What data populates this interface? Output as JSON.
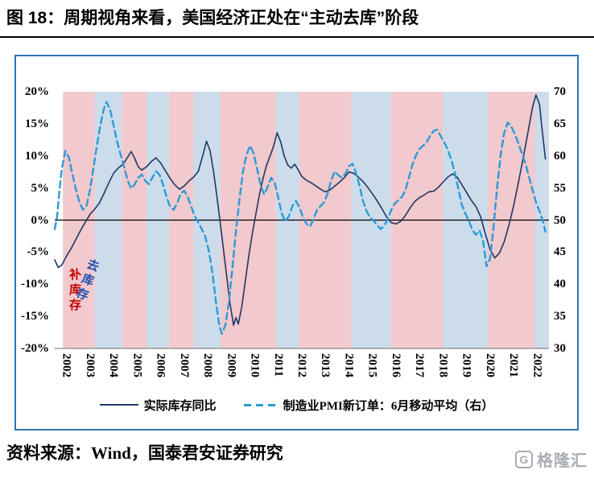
{
  "header": {
    "title": "图 18：周期视角来看，美国经济正处在“主动去库”阶段"
  },
  "source": {
    "text": "资料来源：Wind，国泰君安证券研究"
  },
  "watermark": {
    "logo_letter": "G",
    "text": "格隆汇"
  },
  "annotations": [
    {
      "id": "restock-label",
      "text": "补库存",
      "color": "#c00000"
    },
    {
      "id": "destock-label",
      "text": "去库存",
      "color": "#1f4fae"
    }
  ],
  "chart_data": {
    "type": "line",
    "x_range": [
      2002,
      2023
    ],
    "x_ticks": [
      "2002",
      "2003",
      "2004",
      "2005",
      "2006",
      "2007",
      "2008",
      "2009",
      "2010",
      "2011",
      "2012",
      "2013",
      "2014",
      "2015",
      "2016",
      "2017",
      "2018",
      "2019",
      "2020",
      "2021",
      "2022"
    ],
    "left_axis": {
      "min": -20,
      "max": 20,
      "ticks": [
        "20%",
        "15%",
        "10%",
        "5%",
        "0%",
        "-5%",
        "-10%",
        "-15%",
        "-20%"
      ],
      "tick_values": [
        20,
        15,
        10,
        5,
        0,
        -5,
        -10,
        -15,
        -20
      ]
    },
    "right_axis": {
      "min": 30,
      "max": 70,
      "ticks": [
        "70",
        "65",
        "60",
        "55",
        "50",
        "45",
        "40",
        "35",
        "30"
      ],
      "tick_values": [
        70,
        65,
        60,
        55,
        50,
        45,
        40,
        35,
        30
      ]
    },
    "band_colors": {
      "补库存": "#f2c9cd",
      "去库存": "#cddcea"
    },
    "bands": [
      {
        "from": 2002.35,
        "to": 2003.7,
        "phase": "补库存"
      },
      {
        "from": 2003.7,
        "to": 2004.85,
        "phase": "去库存"
      },
      {
        "from": 2004.85,
        "to": 2005.9,
        "phase": "补库存"
      },
      {
        "from": 2005.9,
        "to": 2006.85,
        "phase": "去库存"
      },
      {
        "from": 2006.85,
        "to": 2007.9,
        "phase": "补库存"
      },
      {
        "from": 2007.9,
        "to": 2009.05,
        "phase": "去库存"
      },
      {
        "from": 2009.05,
        "to": 2011.4,
        "phase": "补库存"
      },
      {
        "from": 2011.4,
        "to": 2012.4,
        "phase": "去库存"
      },
      {
        "from": 2012.4,
        "to": 2014.6,
        "phase": "补库存"
      },
      {
        "from": 2014.6,
        "to": 2016.3,
        "phase": "去库存"
      },
      {
        "from": 2016.3,
        "to": 2018.5,
        "phase": "补库存"
      },
      {
        "from": 2018.5,
        "to": 2020.4,
        "phase": "去库存"
      },
      {
        "from": 2020.4,
        "to": 2022.4,
        "phase": "补库存"
      },
      {
        "from": 2022.4,
        "to": 2023.0,
        "phase": "去库存"
      }
    ],
    "series": [
      {
        "name": "实际库存同比",
        "axis": "left",
        "style": "solid",
        "color": "#1f3864",
        "points": [
          [
            2002.0,
            -6.2
          ],
          [
            2002.15,
            -7.4
          ],
          [
            2002.3,
            -7.0
          ],
          [
            2002.5,
            -5.6
          ],
          [
            2002.7,
            -4.4
          ],
          [
            2002.9,
            -3.0
          ],
          [
            2003.1,
            -1.6
          ],
          [
            2003.3,
            -0.3
          ],
          [
            2003.5,
            0.9
          ],
          [
            2003.7,
            1.7
          ],
          [
            2003.9,
            2.7
          ],
          [
            2004.1,
            4.2
          ],
          [
            2004.3,
            5.8
          ],
          [
            2004.5,
            7.3
          ],
          [
            2004.7,
            8.1
          ],
          [
            2004.9,
            8.7
          ],
          [
            2005.1,
            9.8
          ],
          [
            2005.25,
            10.7
          ],
          [
            2005.4,
            9.6
          ],
          [
            2005.55,
            8.3
          ],
          [
            2005.7,
            7.8
          ],
          [
            2005.9,
            8.3
          ],
          [
            2006.1,
            9.1
          ],
          [
            2006.3,
            9.7
          ],
          [
            2006.5,
            8.9
          ],
          [
            2006.7,
            7.7
          ],
          [
            2006.9,
            6.5
          ],
          [
            2007.1,
            5.5
          ],
          [
            2007.3,
            4.8
          ],
          [
            2007.5,
            5.3
          ],
          [
            2007.7,
            6.1
          ],
          [
            2007.9,
            6.7
          ],
          [
            2008.1,
            7.6
          ],
          [
            2008.3,
            10.2
          ],
          [
            2008.45,
            12.3
          ],
          [
            2008.6,
            10.8
          ],
          [
            2008.75,
            7.5
          ],
          [
            2008.9,
            3.5
          ],
          [
            2009.0,
            0.5
          ],
          [
            2009.15,
            -4.0
          ],
          [
            2009.3,
            -8.5
          ],
          [
            2009.45,
            -13.0
          ],
          [
            2009.6,
            -16.4
          ],
          [
            2009.7,
            -15.2
          ],
          [
            2009.8,
            -16.2
          ],
          [
            2009.95,
            -13.5
          ],
          [
            2010.1,
            -9.5
          ],
          [
            2010.25,
            -5.5
          ],
          [
            2010.4,
            -2.0
          ],
          [
            2010.55,
            1.0
          ],
          [
            2010.7,
            4.0
          ],
          [
            2010.85,
            6.5
          ],
          [
            2011.0,
            8.5
          ],
          [
            2011.15,
            10.0
          ],
          [
            2011.3,
            11.5
          ],
          [
            2011.45,
            13.6
          ],
          [
            2011.6,
            12.2
          ],
          [
            2011.75,
            10.0
          ],
          [
            2011.9,
            8.6
          ],
          [
            2012.05,
            8.1
          ],
          [
            2012.2,
            8.7
          ],
          [
            2012.35,
            7.8
          ],
          [
            2012.5,
            6.8
          ],
          [
            2012.7,
            6.2
          ],
          [
            2012.9,
            5.8
          ],
          [
            2013.1,
            5.3
          ],
          [
            2013.3,
            4.8
          ],
          [
            2013.5,
            4.4
          ],
          [
            2013.7,
            4.7
          ],
          [
            2013.9,
            5.3
          ],
          [
            2014.1,
            5.9
          ],
          [
            2014.3,
            6.6
          ],
          [
            2014.5,
            7.5
          ],
          [
            2014.7,
            7.3
          ],
          [
            2014.9,
            6.7
          ],
          [
            2015.1,
            6.0
          ],
          [
            2015.3,
            5.1
          ],
          [
            2015.5,
            4.1
          ],
          [
            2015.7,
            3.0
          ],
          [
            2015.9,
            1.8
          ],
          [
            2016.1,
            0.5
          ],
          [
            2016.3,
            -0.4
          ],
          [
            2016.5,
            -0.6
          ],
          [
            2016.7,
            -0.2
          ],
          [
            2016.9,
            0.7
          ],
          [
            2017.1,
            1.9
          ],
          [
            2017.3,
            2.9
          ],
          [
            2017.5,
            3.5
          ],
          [
            2017.7,
            3.9
          ],
          [
            2017.9,
            4.4
          ],
          [
            2018.1,
            4.5
          ],
          [
            2018.3,
            5.1
          ],
          [
            2018.5,
            5.9
          ],
          [
            2018.7,
            6.7
          ],
          [
            2018.9,
            7.2
          ],
          [
            2019.1,
            6.7
          ],
          [
            2019.3,
            5.5
          ],
          [
            2019.5,
            4.3
          ],
          [
            2019.7,
            3.1
          ],
          [
            2019.9,
            2.1
          ],
          [
            2020.1,
            0.5
          ],
          [
            2020.3,
            -2.2
          ],
          [
            2020.5,
            -4.6
          ],
          [
            2020.7,
            -5.9
          ],
          [
            2020.9,
            -5.1
          ],
          [
            2021.1,
            -3.4
          ],
          [
            2021.3,
            -0.8
          ],
          [
            2021.5,
            2.2
          ],
          [
            2021.7,
            5.8
          ],
          [
            2021.9,
            9.5
          ],
          [
            2022.1,
            13.5
          ],
          [
            2022.3,
            17.5
          ],
          [
            2022.45,
            19.5
          ],
          [
            2022.6,
            18.0
          ],
          [
            2022.7,
            14.5
          ],
          [
            2022.85,
            9.5
          ]
        ]
      },
      {
        "name": "制造业PMI新订单：6月移动平均（右）",
        "axis": "right",
        "style": "dashed",
        "color": "#2b9bd7",
        "points": [
          [
            2002.0,
            48.6
          ],
          [
            2002.1,
            50.5
          ],
          [
            2002.2,
            54.5
          ],
          [
            2002.3,
            58.0
          ],
          [
            2002.45,
            60.8
          ],
          [
            2002.6,
            59.8
          ],
          [
            2002.75,
            57.2
          ],
          [
            2002.9,
            54.8
          ],
          [
            2003.05,
            52.8
          ],
          [
            2003.2,
            51.6
          ],
          [
            2003.35,
            52.2
          ],
          [
            2003.5,
            54.8
          ],
          [
            2003.65,
            58.2
          ],
          [
            2003.8,
            61.8
          ],
          [
            2003.95,
            65.0
          ],
          [
            2004.1,
            67.5
          ],
          [
            2004.2,
            68.4
          ],
          [
            2004.35,
            67.2
          ],
          [
            2004.5,
            64.8
          ],
          [
            2004.65,
            62.2
          ],
          [
            2004.8,
            60.2
          ],
          [
            2004.95,
            58.2
          ],
          [
            2005.1,
            56.2
          ],
          [
            2005.25,
            54.9
          ],
          [
            2005.4,
            55.6
          ],
          [
            2005.55,
            56.6
          ],
          [
            2005.7,
            57.1
          ],
          [
            2005.85,
            56.1
          ],
          [
            2006.0,
            55.6
          ],
          [
            2006.15,
            56.6
          ],
          [
            2006.3,
            57.6
          ],
          [
            2006.45,
            57.1
          ],
          [
            2006.6,
            55.6
          ],
          [
            2006.75,
            53.6
          ],
          [
            2006.9,
            52.1
          ],
          [
            2007.05,
            51.6
          ],
          [
            2007.2,
            52.6
          ],
          [
            2007.35,
            54.1
          ],
          [
            2007.5,
            54.6
          ],
          [
            2007.65,
            53.6
          ],
          [
            2007.8,
            52.1
          ],
          [
            2007.95,
            50.6
          ],
          [
            2008.1,
            49.6
          ],
          [
            2008.25,
            48.6
          ],
          [
            2008.4,
            47.4
          ],
          [
            2008.55,
            45.2
          ],
          [
            2008.7,
            41.8
          ],
          [
            2008.85,
            37.2
          ],
          [
            2009.0,
            33.4
          ],
          [
            2009.1,
            32.3
          ],
          [
            2009.25,
            33.6
          ],
          [
            2009.4,
            37.2
          ],
          [
            2009.55,
            42.5
          ],
          [
            2009.7,
            48.2
          ],
          [
            2009.85,
            53.2
          ],
          [
            2010.0,
            57.6
          ],
          [
            2010.15,
            60.2
          ],
          [
            2010.3,
            61.6
          ],
          [
            2010.45,
            60.4
          ],
          [
            2010.6,
            58.0
          ],
          [
            2010.75,
            55.4
          ],
          [
            2010.9,
            54.0
          ],
          [
            2011.05,
            55.2
          ],
          [
            2011.2,
            56.6
          ],
          [
            2011.35,
            55.8
          ],
          [
            2011.5,
            53.4
          ],
          [
            2011.65,
            51.0
          ],
          [
            2011.8,
            49.8
          ],
          [
            2011.95,
            50.6
          ],
          [
            2012.1,
            52.2
          ],
          [
            2012.25,
            53.0
          ],
          [
            2012.4,
            52.0
          ],
          [
            2012.55,
            50.4
          ],
          [
            2012.7,
            49.4
          ],
          [
            2012.85,
            49.0
          ],
          [
            2013.0,
            50.2
          ],
          [
            2013.15,
            51.6
          ],
          [
            2013.3,
            52.2
          ],
          [
            2013.45,
            52.8
          ],
          [
            2013.6,
            54.2
          ],
          [
            2013.75,
            56.2
          ],
          [
            2013.9,
            57.6
          ],
          [
            2014.05,
            57.0
          ],
          [
            2014.2,
            56.6
          ],
          [
            2014.35,
            57.2
          ],
          [
            2014.5,
            58.4
          ],
          [
            2014.65,
            58.8
          ],
          [
            2014.8,
            57.4
          ],
          [
            2014.95,
            55.4
          ],
          [
            2015.1,
            53.0
          ],
          [
            2015.25,
            51.4
          ],
          [
            2015.4,
            50.4
          ],
          [
            2015.55,
            49.9
          ],
          [
            2015.7,
            49.2
          ],
          [
            2015.85,
            48.6
          ],
          [
            2016.0,
            49.1
          ],
          [
            2016.15,
            50.1
          ],
          [
            2016.3,
            51.6
          ],
          [
            2016.45,
            52.6
          ],
          [
            2016.6,
            53.1
          ],
          [
            2016.75,
            53.6
          ],
          [
            2016.9,
            54.6
          ],
          [
            2017.05,
            56.6
          ],
          [
            2017.2,
            58.6
          ],
          [
            2017.35,
            60.1
          ],
          [
            2017.5,
            61.1
          ],
          [
            2017.65,
            61.6
          ],
          [
            2017.8,
            62.1
          ],
          [
            2017.95,
            63.1
          ],
          [
            2018.1,
            63.9
          ],
          [
            2018.25,
            64.1
          ],
          [
            2018.4,
            63.1
          ],
          [
            2018.55,
            62.1
          ],
          [
            2018.7,
            61.0
          ],
          [
            2018.85,
            59.4
          ],
          [
            2019.0,
            57.4
          ],
          [
            2019.15,
            54.9
          ],
          [
            2019.3,
            52.4
          ],
          [
            2019.45,
            51.0
          ],
          [
            2019.6,
            49.9
          ],
          [
            2019.75,
            48.4
          ],
          [
            2019.9,
            47.7
          ],
          [
            2020.05,
            48.4
          ],
          [
            2020.2,
            46.8
          ],
          [
            2020.35,
            42.8
          ],
          [
            2020.5,
            44.0
          ],
          [
            2020.65,
            49.0
          ],
          [
            2020.8,
            55.2
          ],
          [
            2020.95,
            60.2
          ],
          [
            2021.1,
            63.6
          ],
          [
            2021.25,
            65.2
          ],
          [
            2021.4,
            64.6
          ],
          [
            2021.55,
            63.4
          ],
          [
            2021.7,
            62.0
          ],
          [
            2021.85,
            60.4
          ],
          [
            2022.0,
            58.8
          ],
          [
            2022.15,
            56.8
          ],
          [
            2022.3,
            54.8
          ],
          [
            2022.45,
            52.8
          ],
          [
            2022.6,
            51.4
          ],
          [
            2022.75,
            49.8
          ],
          [
            2022.85,
            48.2
          ]
        ]
      }
    ],
    "title": "图 18：周期视角来看，美国经济正处在“主动去库”阶段",
    "grid": false,
    "legend_position": "bottom"
  }
}
